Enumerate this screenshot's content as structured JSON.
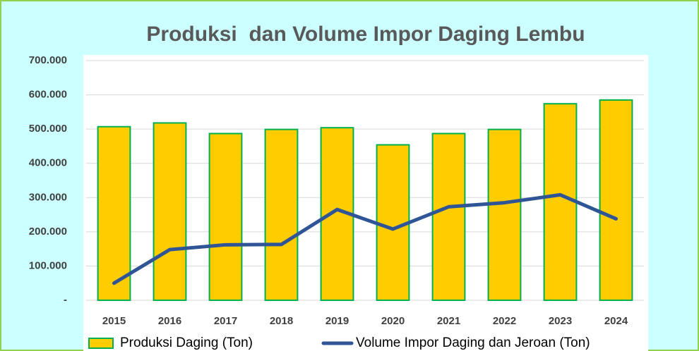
{
  "chart_data": {
    "type": "combo",
    "title": "Produksi  dan Volume Impor Daging Lembu",
    "categories": [
      "2015",
      "2016",
      "2017",
      "2018",
      "2019",
      "2020",
      "2021",
      "2022",
      "2023",
      "2024"
    ],
    "series": [
      {
        "name": "Produksi Daging (Ton)",
        "type": "bar",
        "color": "#ffcc00",
        "values": [
          507000,
          518000,
          487000,
          499000,
          504000,
          454000,
          487000,
          499000,
          574000,
          585000
        ]
      },
      {
        "name": "Volume Impor Daging dan Jeroan (Ton)",
        "type": "line",
        "color": "#2f5597",
        "values": [
          50000,
          148000,
          162000,
          163000,
          265000,
          208000,
          273000,
          285000,
          308000,
          238000
        ]
      }
    ],
    "ylim": [
      0,
      700000
    ],
    "yticks": [
      {
        "value": 0,
        "label": "-"
      },
      {
        "value": 100000,
        "label": "100.000"
      },
      {
        "value": 200000,
        "label": "200.000"
      },
      {
        "value": 300000,
        "label": "300.000"
      },
      {
        "value": 400000,
        "label": "400.000"
      },
      {
        "value": 500000,
        "label": "500.000"
      },
      {
        "value": 600000,
        "label": "600.000"
      },
      {
        "value": 700000,
        "label": "700.000"
      }
    ],
    "grid": true,
    "legend": "bottom"
  }
}
